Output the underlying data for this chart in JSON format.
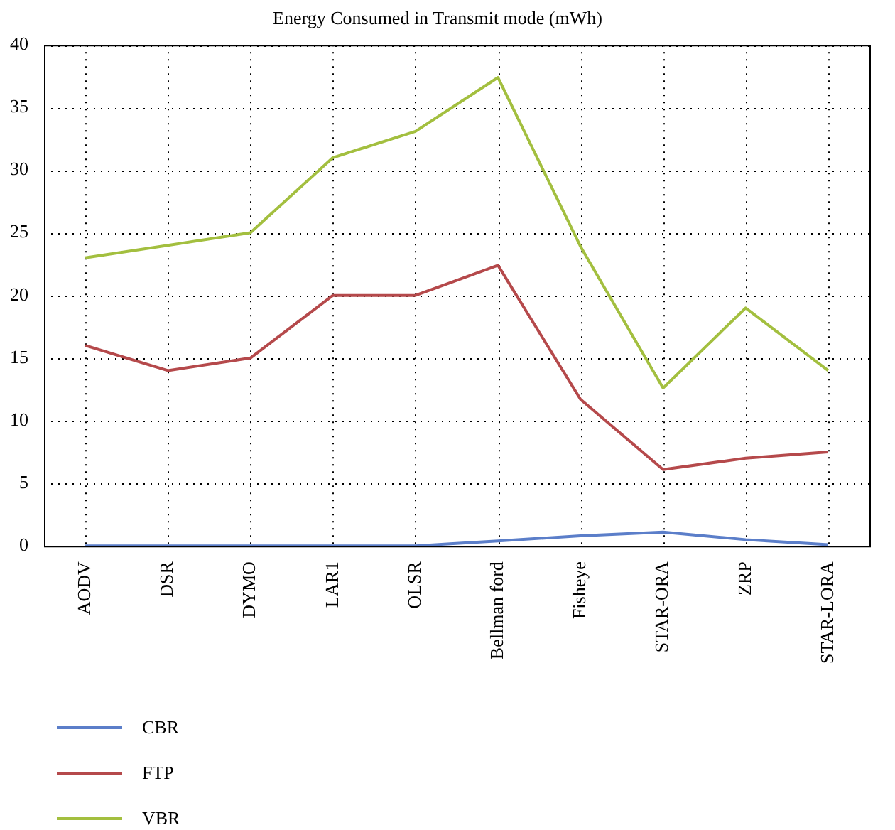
{
  "chart_data": {
    "type": "line",
    "title": "Energy Consumed in Transmit mode (mWh)",
    "categories": [
      "AODV",
      "DSR",
      "DYMO",
      "LAR1",
      "OLSR",
      "Bellman ford",
      "Fisheye",
      "STAR-ORA",
      "ZRP",
      "STAR-LORA"
    ],
    "series": [
      {
        "name": "CBR",
        "color": "#5b7ec9",
        "values": [
          0,
          0,
          0,
          0,
          0,
          0.4,
          0.8,
          1.1,
          0.5,
          0.1
        ]
      },
      {
        "name": "FTP",
        "color": "#b5494b",
        "values": [
          16,
          14,
          15,
          20,
          20,
          22.4,
          11.7,
          6.1,
          7,
          7.5
        ]
      },
      {
        "name": "VBR",
        "color": "#a3bf3f",
        "values": [
          23,
          24,
          25,
          31,
          33.1,
          37.4,
          23.9,
          12.6,
          19,
          14
        ]
      }
    ],
    "ylim": [
      0,
      40
    ],
    "yticks": [
      0,
      5,
      10,
      15,
      20,
      25,
      30,
      35,
      40
    ],
    "grid": true,
    "legend": "bottom left",
    "marker": "none",
    "line_style": "solid"
  }
}
